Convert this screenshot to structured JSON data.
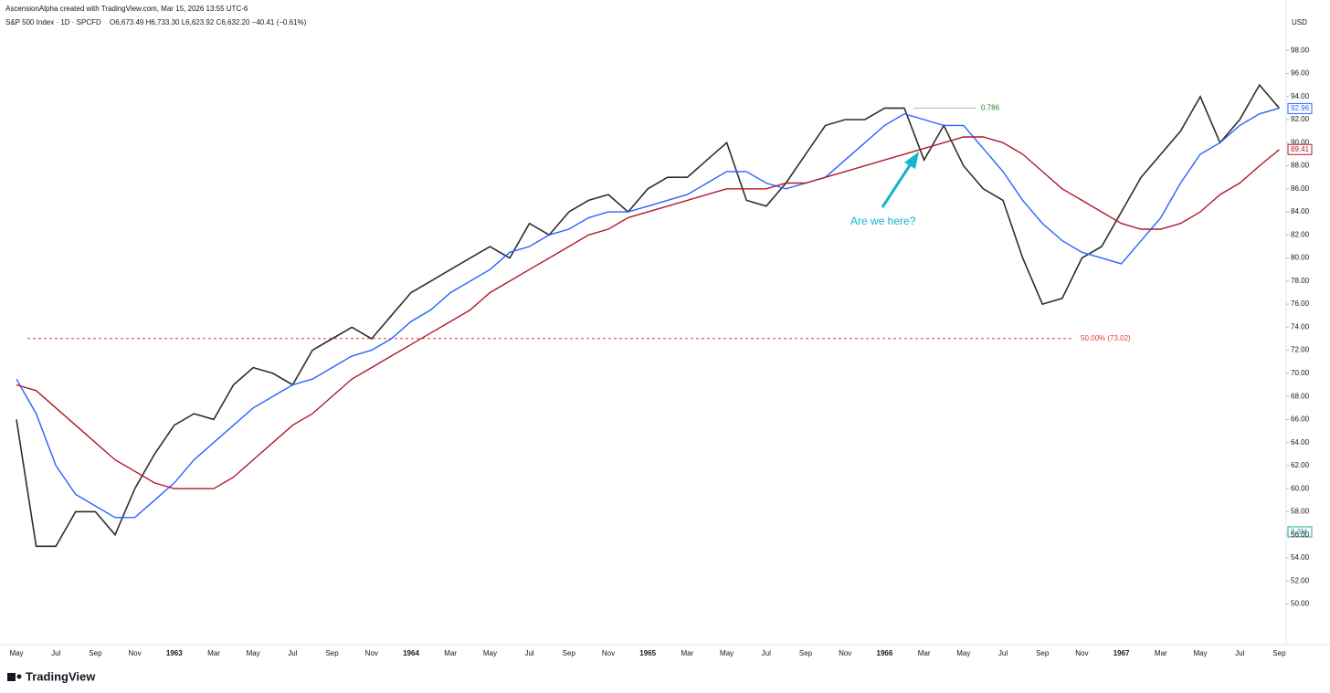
{
  "header": {
    "attribution": "AscensionAlpha created with TradingView.com, Mar 15, 2026 13:55 UTC-6",
    "symbol": "S&P 500 Index · 1D · SPCFD",
    "ohlc": "O6,673.49 H6,733.30 L6,623.92 C6,632.20 −40.41 (−0.61%)"
  },
  "currency": "USD",
  "logo": "TradingView",
  "chart_data": {
    "type": "line",
    "categories": [
      "May",
      null,
      "Jul",
      null,
      "Sep",
      null,
      "Nov",
      null,
      "1963",
      null,
      "Mar",
      null,
      "May",
      null,
      "Jul",
      null,
      "Sep",
      null,
      "Nov",
      null,
      "1964",
      null,
      "Mar",
      null,
      "May",
      null,
      "Jul",
      null,
      "Sep",
      null,
      "Nov",
      null,
      "1965",
      null,
      "Mar",
      null,
      "May",
      null,
      "Jul",
      null,
      "Sep",
      null,
      "Nov",
      null,
      "1966",
      null,
      "Mar",
      null,
      "May",
      null,
      "Jul",
      null,
      "Sep",
      null,
      "Nov",
      null,
      "1967",
      null,
      "Mar",
      null,
      "May",
      null,
      "Jul",
      null,
      "Sep"
    ],
    "series": [
      {
        "color": "#2e2e2e",
        "values": [
          66,
          55,
          55,
          58,
          58,
          56,
          60,
          63,
          65.5,
          66.5,
          66,
          69,
          70.5,
          70,
          69,
          72,
          73,
          74,
          73,
          75,
          77,
          78,
          79,
          80,
          81,
          80,
          83,
          82,
          84,
          85,
          85.5,
          84,
          86,
          87,
          87,
          88.5,
          90,
          85,
          84.5,
          86.5,
          89,
          91.5,
          92,
          92,
          93,
          93,
          88.5,
          91.5,
          88,
          86,
          85,
          80,
          76,
          76.5,
          80,
          81,
          84,
          87,
          89,
          91,
          94,
          90,
          92,
          95,
          93
        ]
      },
      {
        "color": "#2962ff",
        "values": [
          69.5,
          66.5,
          62,
          59.5,
          58.5,
          57.5,
          57.5,
          59,
          60.5,
          62.5,
          64,
          65.5,
          67,
          68,
          69,
          69.5,
          70.5,
          71.5,
          72,
          73,
          74.5,
          75.5,
          77,
          78,
          79,
          80.5,
          81,
          82,
          82.5,
          83.5,
          84,
          84,
          84.5,
          85,
          85.5,
          86.5,
          87.5,
          87.5,
          86.5,
          86,
          86.5,
          87,
          88.5,
          90,
          91.5,
          92.5,
          92,
          91.5,
          91.5,
          89.5,
          87.5,
          85,
          83,
          81.5,
          80.5,
          80,
          79.5,
          81.5,
          83.5,
          86.5,
          89,
          90,
          91.5,
          92.5,
          93
        ]
      },
      {
        "color": "#b2182b",
        "values": [
          69,
          68.5,
          67,
          65.5,
          64,
          62.5,
          61.5,
          60.5,
          60,
          60,
          60,
          61,
          62.5,
          64,
          65.5,
          66.5,
          68,
          69.5,
          70.5,
          71.5,
          72.5,
          73.5,
          74.5,
          75.5,
          77,
          78,
          79,
          80,
          81,
          82,
          82.5,
          83.5,
          84,
          84.5,
          85,
          85.5,
          86,
          86,
          86,
          86.5,
          86.5,
          87,
          87.5,
          88,
          88.5,
          89,
          89.5,
          90,
          90.5,
          90.5,
          90,
          89,
          87.5,
          86,
          85,
          84,
          83,
          82.5,
          82.5,
          83,
          84,
          85.5,
          86.5,
          88,
          89.4
        ]
      }
    ],
    "ylim": [
      47.9,
      100
    ],
    "yticks": [
      {
        "value": 50,
        "label": "50.00"
      },
      {
        "value": 52,
        "label": "52.00"
      },
      {
        "value": 54,
        "label": "54.00"
      },
      {
        "value": 56,
        "label": "56.00"
      },
      {
        "value": 58,
        "label": "58.00"
      },
      {
        "value": 60,
        "label": "60.00"
      },
      {
        "value": 62,
        "label": "62.00"
      },
      {
        "value": 64,
        "label": "64.00"
      },
      {
        "value": 66,
        "label": "66.00"
      },
      {
        "value": 68,
        "label": "68.00"
      },
      {
        "value": 70,
        "label": "70.00"
      },
      {
        "value": 72,
        "label": "72.00"
      },
      {
        "value": 74,
        "label": "74.00"
      },
      {
        "value": 76,
        "label": "76.00"
      },
      {
        "value": 78,
        "label": "78.00"
      },
      {
        "value": 80,
        "label": "80.00"
      },
      {
        "value": 82,
        "label": "82.00"
      },
      {
        "value": 84,
        "label": "84.00"
      },
      {
        "value": 86,
        "label": "86.00"
      },
      {
        "value": 88,
        "label": "88.00"
      },
      {
        "value": 90,
        "label": "90.00"
      },
      {
        "value": 92,
        "label": "92.00"
      },
      {
        "value": 94,
        "label": "94.00"
      },
      {
        "value": 96,
        "label": "96.00"
      },
      {
        "value": 98,
        "label": "98.00"
      }
    ],
    "grid": false,
    "levels": [
      {
        "value": 93,
        "label": "0.786",
        "color": "#2e7d32"
      },
      {
        "value": 73.02,
        "label": "50.00% (73.02)",
        "color": "#e53935"
      }
    ],
    "price_labels": [
      {
        "value": 92.96,
        "label": "92.96",
        "color": "#2962ff"
      },
      {
        "value": 89.41,
        "label": "89.41",
        "color": "#b2182b"
      }
    ],
    "volume_label": "9.3M",
    "annotation": "Are we here?"
  }
}
